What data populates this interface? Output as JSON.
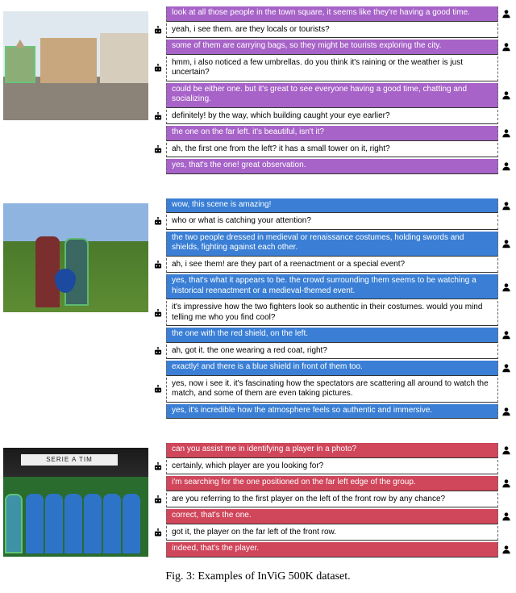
{
  "colors": {
    "user_bubble_1": "#a763c8",
    "user_bubble_2": "#3a7fd5",
    "user_bubble_3": "#d0465b",
    "bot_bubble": "#ffffff",
    "bot_text": "#000000",
    "user_text": "#ffffff",
    "bubble_border": "#333333"
  },
  "icon_glyphs": {
    "bot": "robot-icon",
    "user": "person-icon"
  },
  "caption": "Fig. 3: Examples of InViG 500K dataset.",
  "conversations": [
    {
      "id": "town-square",
      "user_color": "#a763c8",
      "thumb_kind": "square",
      "banner_text": "",
      "messages": [
        {
          "role": "user",
          "text": "look at all those people in the town square, it seems like they're having a good time."
        },
        {
          "role": "bot",
          "text": "yeah, i see them. are they locals or tourists?"
        },
        {
          "role": "user",
          "text": "some of them are carrying bags, so they might be tourists exploring the city."
        },
        {
          "role": "bot",
          "text": "hmm, i also noticed a few umbrellas. do you think it's raining or the weather is just uncertain?"
        },
        {
          "role": "user",
          "text": "could be either one. but it's great to see everyone having a good time, chatting and socializing."
        },
        {
          "role": "bot",
          "text": "definitely! by the way, which building caught your eye earlier?"
        },
        {
          "role": "user",
          "text": "the one on the far left. it's beautiful, isn't it?"
        },
        {
          "role": "bot",
          "text": "ah, the first one from the left? it has a small tower on it, right?"
        },
        {
          "role": "user",
          "text": "yes, that's the one! great observation."
        }
      ]
    },
    {
      "id": "knights",
      "user_color": "#3a7fd5",
      "thumb_kind": "knights",
      "banner_text": "",
      "messages": [
        {
          "role": "user",
          "text": "wow, this scene is amazing!"
        },
        {
          "role": "bot",
          "text": "who or what is catching your attention?"
        },
        {
          "role": "user",
          "text": "the two people dressed in medieval or renaissance costumes, holding swords and shields, fighting against each other."
        },
        {
          "role": "bot",
          "text": "ah, i see them! are they part of a reenactment or a special event?"
        },
        {
          "role": "user",
          "text": "yes, that's what it appears to be. the crowd surrounding them seems to be watching a historical reenactment or a medieval-themed event."
        },
        {
          "role": "bot",
          "text": "it's impressive how the two fighters look so authentic in their costumes. would you mind telling me who you find cool?"
        },
        {
          "role": "user",
          "text": "the one with the red shield, on the left."
        },
        {
          "role": "bot",
          "text": "ah, got it. the one wearing a red coat, right?"
        },
        {
          "role": "user",
          "text": "exactly! and there is a blue shield in front of them too."
        },
        {
          "role": "bot",
          "text": "yes, now i see it. it's fascinating how the spectators are scattering all around to watch the match, and some of them are even taking pictures."
        },
        {
          "role": "user",
          "text": "yes, it's incredible how the atmosphere feels so authentic and immersive."
        }
      ]
    },
    {
      "id": "soccer",
      "user_color": "#d0465b",
      "thumb_kind": "soccer",
      "banner_text": "SERIE A TIM",
      "messages": [
        {
          "role": "user",
          "text": "can you assist me in identifying a player in a photo?"
        },
        {
          "role": "bot",
          "text": "certainly, which player are you looking for?"
        },
        {
          "role": "user",
          "text": "i'm searching for the one positioned on the far left edge of the group."
        },
        {
          "role": "bot",
          "text": "are you referring to the first player on the left of the front row by any chance?"
        },
        {
          "role": "user",
          "text": "correct, that's the one."
        },
        {
          "role": "bot",
          "text": "got it, the player on the far left of the front row."
        },
        {
          "role": "user",
          "text": "indeed, that's the player."
        }
      ]
    }
  ]
}
